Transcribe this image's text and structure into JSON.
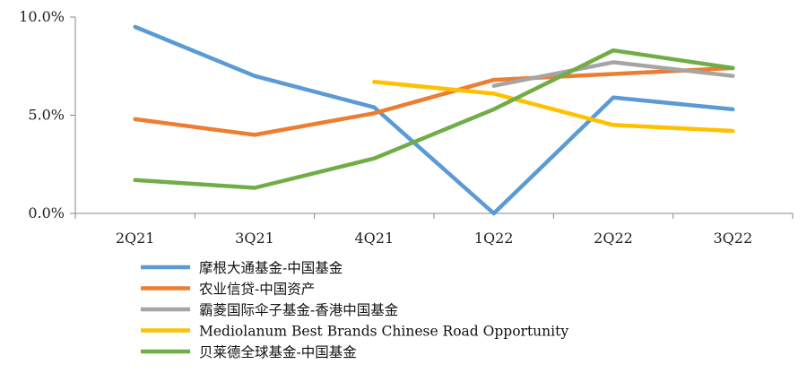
{
  "chart_data": {
    "type": "line",
    "categories": [
      "2Q21",
      "3Q21",
      "4Q21",
      "1Q22",
      "2Q22",
      "3Q22"
    ],
    "ylim": [
      0,
      10
    ],
    "yticks": [
      {
        "value": 0,
        "label": "0.0%"
      },
      {
        "value": 5,
        "label": "5.0%"
      },
      {
        "value": 10,
        "label": "10.0%"
      }
    ],
    "grid": false,
    "legend_position": "bottom",
    "series": [
      {
        "name": "摩根大通基金-中国基金",
        "color": "#5B9BD5",
        "values": [
          9.5,
          7.0,
          5.4,
          0.0,
          5.9,
          5.3
        ]
      },
      {
        "name": "农业信贷-中国资产",
        "color": "#ED7D31",
        "values": [
          4.8,
          4.0,
          5.1,
          6.8,
          7.1,
          7.4
        ]
      },
      {
        "name": "霸菱国际伞子基金-香港中国基金",
        "color": "#A5A5A5",
        "values": [
          null,
          null,
          null,
          6.5,
          7.7,
          7.0
        ]
      },
      {
        "name": "Mediolanum Best Brands Chinese Road Opportunity",
        "color": "#FFC000",
        "values": [
          null,
          null,
          6.7,
          6.1,
          4.5,
          4.2
        ]
      },
      {
        "name": "贝莱德全球基金-中国基金",
        "color": "#70AD47",
        "values": [
          1.7,
          1.3,
          2.8,
          5.3,
          8.3,
          7.4
        ]
      }
    ]
  }
}
